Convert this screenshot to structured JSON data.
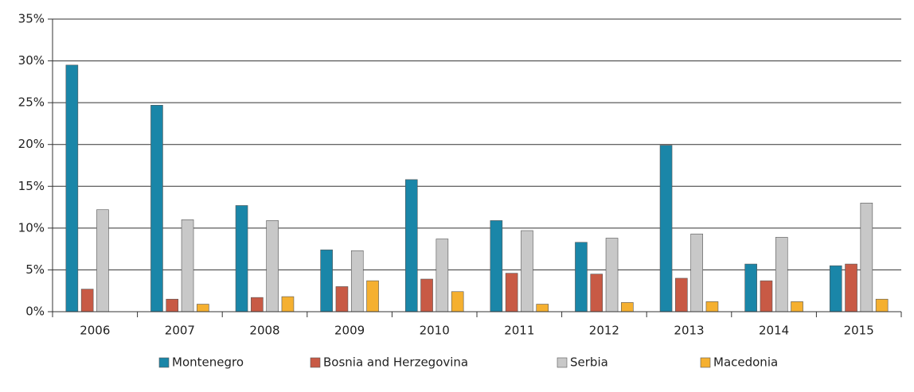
{
  "chart_data": {
    "type": "bar",
    "categories": [
      "2006",
      "2007",
      "2008",
      "2009",
      "2010",
      "2011",
      "2012",
      "2013",
      "2014",
      "2015"
    ],
    "series": [
      {
        "name": "Montenegro",
        "color": "#1a86a8",
        "values": [
          29.5,
          24.7,
          12.7,
          7.4,
          15.8,
          10.9,
          8.3,
          19.9,
          5.7,
          5.5
        ]
      },
      {
        "name": "Bosnia and Herzegovina",
        "color": "#c85a45",
        "values": [
          2.7,
          1.5,
          1.7,
          3.0,
          3.9,
          4.6,
          4.5,
          4.0,
          3.7,
          5.7
        ]
      },
      {
        "name": "Serbia",
        "color": "#c8c8c8",
        "values": [
          12.2,
          11.0,
          10.9,
          7.3,
          8.7,
          9.7,
          8.8,
          9.3,
          8.9,
          13.0
        ]
      },
      {
        "name": "Macedonia",
        "color": "#f5b030",
        "values": [
          null,
          0.9,
          1.8,
          3.7,
          2.4,
          0.9,
          1.1,
          1.2,
          1.2,
          1.5
        ]
      }
    ],
    "ylim": [
      0,
      35
    ],
    "yticks": [
      {
        "value": 0,
        "label": "0%"
      },
      {
        "value": 5,
        "label": "5%"
      },
      {
        "value": 10,
        "label": "10%"
      },
      {
        "value": 15,
        "label": "15%"
      },
      {
        "value": 20,
        "label": "20%"
      },
      {
        "value": 25,
        "label": "25%"
      },
      {
        "value": 30,
        "label": "30%"
      },
      {
        "value": 35,
        "label": "35%"
      }
    ],
    "grid": true,
    "legend": "bottom"
  }
}
